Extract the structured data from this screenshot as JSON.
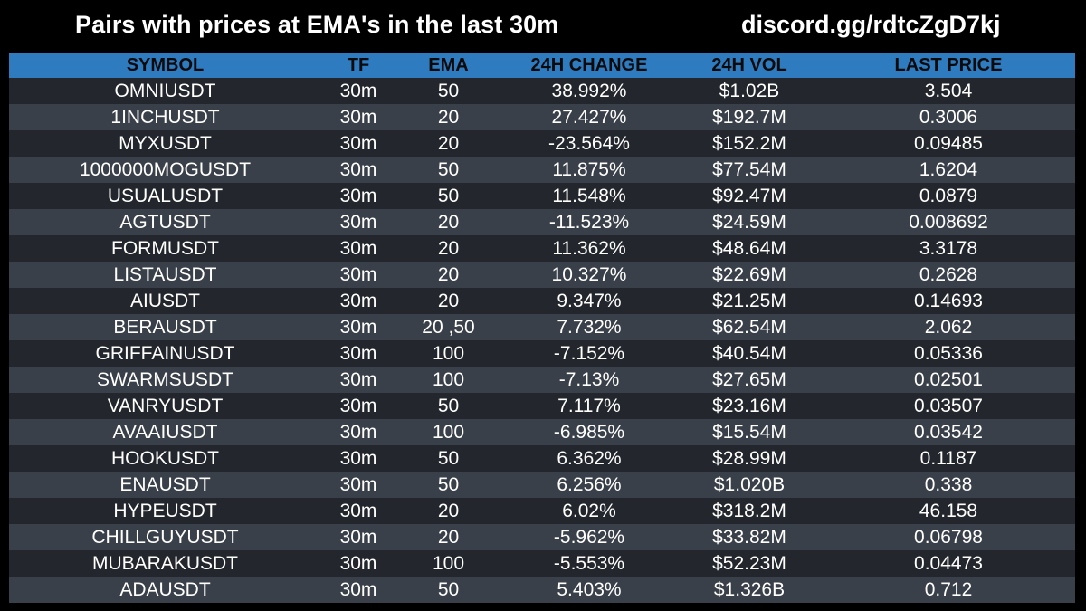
{
  "header": {
    "title": "Pairs with prices at EMA's in the last 30m",
    "discord": "discord.gg/rdtcZgD7kj"
  },
  "colors": {
    "background": "#000000",
    "header_bg": "#2e7bc0",
    "row_dark": "#23272d",
    "row_light": "#3a4049",
    "text": "#ffffff"
  },
  "table": {
    "columns": [
      "SYMBOL",
      "TF",
      "EMA",
      "24H CHANGE",
      "24H VOL",
      "LAST PRICE"
    ],
    "rows": [
      [
        "OMNIUSDT",
        "30m",
        "50",
        "38.992%",
        "$1.02B",
        "3.504"
      ],
      [
        "1INCHUSDT",
        "30m",
        "20",
        "27.427%",
        "$192.7M",
        "0.3006"
      ],
      [
        "MYXUSDT",
        "30m",
        "20",
        "-23.564%",
        "$152.2M",
        "0.09485"
      ],
      [
        "1000000MOGUSDT",
        "30m",
        "50",
        "11.875%",
        "$77.54M",
        "1.6204"
      ],
      [
        "USUALUSDT",
        "30m",
        "50",
        "11.548%",
        "$92.47M",
        "0.0879"
      ],
      [
        "AGTUSDT",
        "30m",
        "20",
        "-11.523%",
        "$24.59M",
        "0.008692"
      ],
      [
        "FORMUSDT",
        "30m",
        "20",
        "11.362%",
        "$48.64M",
        "3.3178"
      ],
      [
        "LISTAUSDT",
        "30m",
        "20",
        "10.327%",
        "$22.69M",
        "0.2628"
      ],
      [
        "AIUSDT",
        "30m",
        "20",
        "9.347%",
        "$21.25M",
        "0.14693"
      ],
      [
        "BERAUSDT",
        "30m",
        "20 ,50",
        "7.732%",
        "$62.54M",
        "2.062"
      ],
      [
        "GRIFFAINUSDT",
        "30m",
        "100",
        "-7.152%",
        "$40.54M",
        "0.05336"
      ],
      [
        "SWARMSUSDT",
        "30m",
        "100",
        "-7.13%",
        "$27.65M",
        "0.02501"
      ],
      [
        "VANRYUSDT",
        "30m",
        "50",
        "7.117%",
        "$23.16M",
        "0.03507"
      ],
      [
        "AVAAIUSDT",
        "30m",
        "100",
        "-6.985%",
        "$15.54M",
        "0.03542"
      ],
      [
        "HOOKUSDT",
        "30m",
        "50",
        "6.362%",
        "$28.99M",
        "0.1187"
      ],
      [
        "ENAUSDT",
        "30m",
        "50",
        "6.256%",
        "$1.020B",
        "0.338"
      ],
      [
        "HYPEUSDT",
        "30m",
        "20",
        "6.02%",
        "$318.2M",
        "46.158"
      ],
      [
        "CHILLGUYUSDT",
        "30m",
        "20",
        "-5.962%",
        "$33.82M",
        "0.06798"
      ],
      [
        "MUBARAKUSDT",
        "30m",
        "100",
        "-5.553%",
        "$52.23M",
        "0.04473"
      ],
      [
        "ADAUSDT",
        "30m",
        "50",
        "5.403%",
        "$1.326B",
        "0.712"
      ]
    ]
  }
}
